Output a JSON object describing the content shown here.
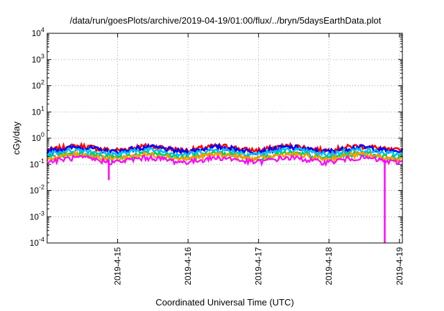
{
  "chart_data": {
    "type": "line",
    "title": "/data/run/goesPlots/archive/2019-04-19/01:00/flux/../bryn/5daysEarthData.plot",
    "xlabel": "Coordinated Universal Time (UTC)",
    "ylabel": "cGy/day",
    "y_scale": "log",
    "ylim": [
      0.0001,
      10000
    ],
    "y_ticks": [
      {
        "base": "10",
        "exp": "-4",
        "value": 0.0001
      },
      {
        "base": "10",
        "exp": "-3",
        "value": 0.001
      },
      {
        "base": "10",
        "exp": "-2",
        "value": 0.01
      },
      {
        "base": "10",
        "exp": "-1",
        "value": 0.1
      },
      {
        "base": "10",
        "exp": "0",
        "value": 1
      },
      {
        "base": "10",
        "exp": "1",
        "value": 10
      },
      {
        "base": "10",
        "exp": "2",
        "value": 100
      },
      {
        "base": "10",
        "exp": "3",
        "value": 1000
      },
      {
        "base": "10",
        "exp": "4",
        "value": 10000
      }
    ],
    "xlim": [
      "2019-04-14 00:00",
      "2019-04-19 01:00"
    ],
    "x_ticks": [
      "2019-4-15",
      "2019-4-16",
      "2019-4-17",
      "2019-4-18",
      "2019-4-19"
    ],
    "grid": true,
    "series": [
      {
        "color": "#ff0000",
        "level": 0.42
      },
      {
        "color": "#0000ff",
        "level": 0.38
      },
      {
        "color": "#00bfff",
        "level": 0.3
      },
      {
        "color": "#00cc66",
        "level": 0.22
      },
      {
        "color": "#ff9900",
        "level": 0.2
      },
      {
        "color": "#ff00ff",
        "level": 0.15
      }
    ],
    "annotations": [
      {
        "series_color": "#ff00ff",
        "x": "2019-04-14 21:00",
        "y": 0.025
      },
      {
        "series_color": "#ff00ff",
        "x": "2019-04-18 19:00",
        "y": 0.0001
      }
    ]
  }
}
